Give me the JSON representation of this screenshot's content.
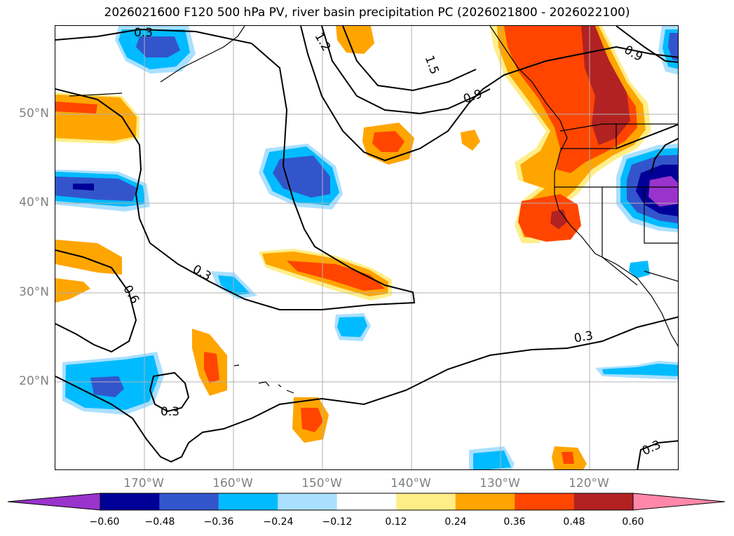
{
  "title": "2026021600 F120 500 hPa PV, river basin precipitation PC (2026021800 - 2026022100)",
  "map": {
    "lat_labels": [
      "50°N",
      "40°N",
      "30°N",
      "20°N"
    ],
    "lon_labels": [
      "170°W",
      "160°W",
      "150°W",
      "140°W",
      "130°W",
      "120°W"
    ],
    "contour_labels": [
      "0.3",
      "1.2",
      "1.5",
      "0.9",
      "0.9",
      "0.3",
      "0.6",
      "0.3",
      "0.3",
      "0.3"
    ]
  },
  "colorbar": {
    "ticks": [
      "−0.60",
      "−0.48",
      "−0.36",
      "−0.24",
      "−0.12",
      "0.12",
      "0.24",
      "0.36",
      "0.48",
      "0.60"
    ],
    "colors": [
      "#9933cc",
      "#000099",
      "#3355cc",
      "#00bbff",
      "#aae0ff",
      "#ffffff",
      "#ffee88",
      "#ffa500",
      "#ff4500",
      "#b22222",
      "#ff88aa"
    ]
  }
}
